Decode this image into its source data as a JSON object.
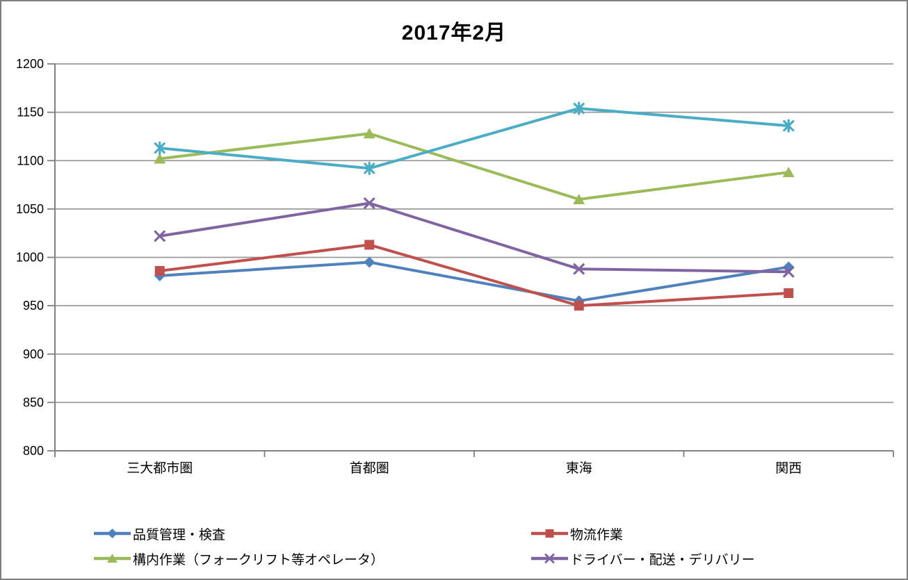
{
  "window": {
    "background": "#FFFFFF",
    "border_color": "#7F7F7F"
  },
  "chart_data": {
    "type": "line",
    "title": "2017年2月",
    "categories": [
      "三大都市圏",
      "首都圏",
      "東海",
      "関西"
    ],
    "series": [
      {
        "name": "品質管理・検査",
        "marker": "diamond",
        "color": "#4F81BD",
        "values": [
          981,
          995,
          955,
          990
        ],
        "legend_visible": true
      },
      {
        "name": "物流作業",
        "marker": "square",
        "color": "#C0504D",
        "values": [
          986,
          1013,
          950,
          963
        ],
        "legend_visible": true
      },
      {
        "name": "構内作業（フォークリフト等オペレータ）",
        "marker": "triangle",
        "color": "#9BBB59",
        "values": [
          1102,
          1128,
          1060,
          1088
        ],
        "legend_visible": true
      },
      {
        "name": "ドライバー・配送・デリバリー",
        "marker": "x",
        "color": "#8064A2",
        "values": [
          1022,
          1056,
          988,
          985
        ],
        "legend_visible": true
      },
      {
        "name": "",
        "marker": "asterisk",
        "color": "#4BACC6",
        "values": [
          1113,
          1092,
          1154,
          1136
        ],
        "legend_visible": false
      }
    ],
    "xlabel": "",
    "ylabel": "",
    "ylim": [
      800,
      1200
    ],
    "ytick_step": 50,
    "ytick_labels": [
      "800",
      "850",
      "900",
      "950",
      "1000",
      "1050",
      "1100",
      "1150",
      "1200"
    ],
    "grid": true,
    "legend_position": "bottom-two-columns",
    "colors": {
      "gridline": "#999999",
      "axis": "#808080",
      "text": "#000000"
    }
  }
}
